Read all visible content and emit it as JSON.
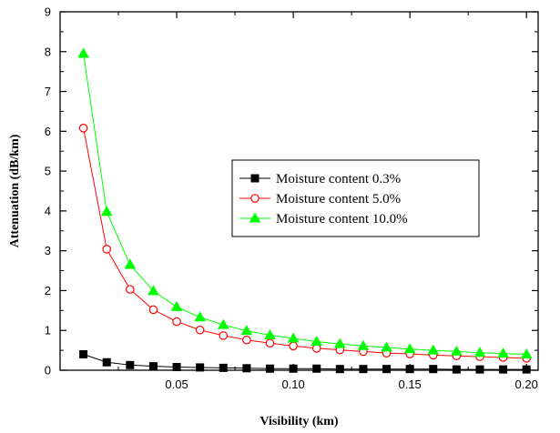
{
  "chart_data": {
    "type": "line",
    "title": "",
    "xlabel": "Visibility (km)",
    "ylabel": "Attenuation (dB/km)",
    "xlim": [
      0.0,
      0.205
    ],
    "ylim": [
      0,
      9
    ],
    "xticks": [
      0.05,
      0.1,
      0.15,
      0.2
    ],
    "xtick_labels": [
      "0.05",
      "0.10",
      "0.15",
      "0.20"
    ],
    "yticks": [
      0,
      1,
      2,
      3,
      4,
      5,
      6,
      7,
      8,
      9
    ],
    "ytick_labels": [
      "0",
      "1",
      "2",
      "3",
      "4",
      "5",
      "6",
      "7",
      "8",
      "9"
    ],
    "grid": false,
    "legend_position": "center-right",
    "x": [
      0.01,
      0.02,
      0.03,
      0.04,
      0.05,
      0.06,
      0.07,
      0.08,
      0.09,
      0.1,
      0.11,
      0.12,
      0.13,
      0.14,
      0.15,
      0.16,
      0.17,
      0.18,
      0.19,
      0.2
    ],
    "series": [
      {
        "name": "Moisture content 0.3%",
        "color": "#000000",
        "marker": "square-filled",
        "values": [
          0.4,
          0.2,
          0.13,
          0.1,
          0.08,
          0.07,
          0.06,
          0.05,
          0.04,
          0.04,
          0.04,
          0.03,
          0.03,
          0.03,
          0.03,
          0.03,
          0.02,
          0.02,
          0.02,
          0.02
        ]
      },
      {
        "name": "Moisture content 5.0%",
        "color": "#ff0000",
        "marker": "circle-open",
        "values": [
          6.08,
          3.04,
          2.03,
          1.52,
          1.22,
          1.01,
          0.87,
          0.76,
          0.68,
          0.61,
          0.55,
          0.51,
          0.47,
          0.43,
          0.41,
          0.38,
          0.36,
          0.34,
          0.32,
          0.3
        ]
      },
      {
        "name": "Moisture content 10.0%",
        "color": "#00ff00",
        "marker": "triangle-filled",
        "values": [
          7.95,
          3.98,
          2.65,
          1.99,
          1.59,
          1.33,
          1.14,
          0.99,
          0.88,
          0.8,
          0.72,
          0.66,
          0.61,
          0.57,
          0.53,
          0.5,
          0.47,
          0.44,
          0.42,
          0.4
        ]
      }
    ]
  }
}
